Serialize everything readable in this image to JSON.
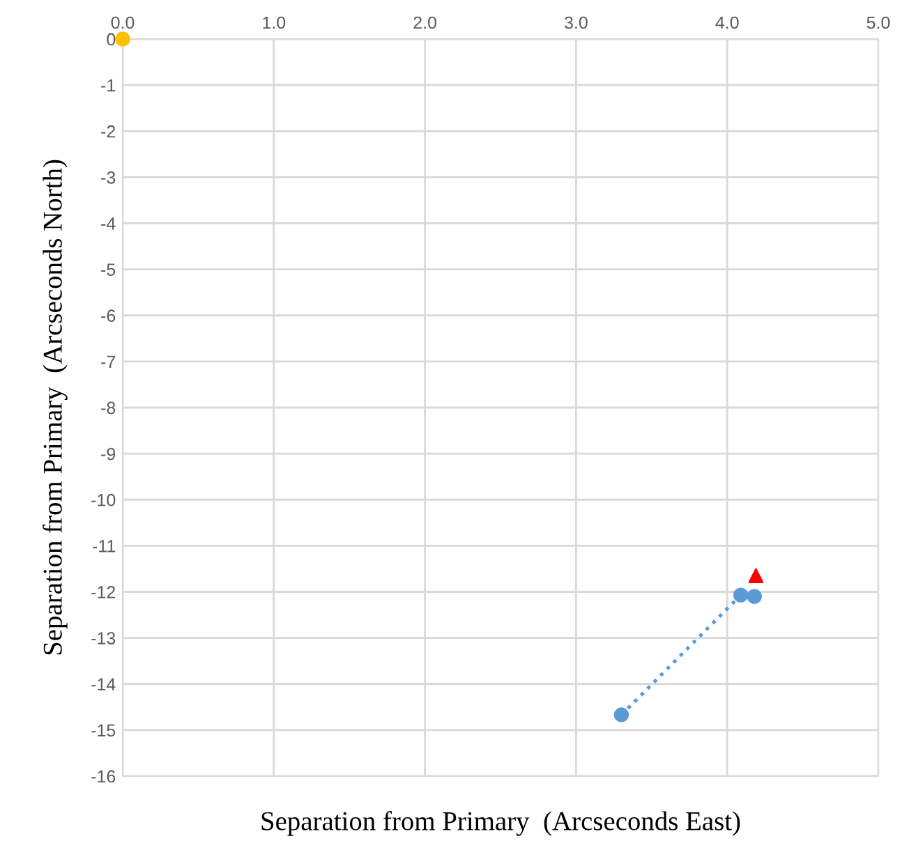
{
  "chart_data": {
    "type": "scatter",
    "xlabel": "Separation from Primary  (Arcseconds East)",
    "ylabel": "Separation from Primary  (Arcseconds North)",
    "xlim": [
      0,
      5
    ],
    "xticks": [
      {
        "value": 0,
        "label": "0.0"
      },
      {
        "value": 1,
        "label": "1.0"
      },
      {
        "value": 2,
        "label": "2.0"
      },
      {
        "value": 3,
        "label": "3.0"
      },
      {
        "value": 4,
        "label": "4.0"
      },
      {
        "value": 5,
        "label": "5.0"
      }
    ],
    "ylim": [
      -16,
      0
    ],
    "yticks": [
      0,
      -1,
      -2,
      -3,
      -4,
      -5,
      -6,
      -7,
      -8,
      -9,
      -10,
      -11,
      -12,
      -13,
      -14,
      -15,
      -16
    ],
    "grid": true,
    "series": [
      {
        "type": "line",
        "color": "#5b9bd5",
        "x": [
          3.3,
          4.09
        ],
        "values": [
          -14.67,
          -12.07
        ],
        "marker": "none",
        "line_style": "dotted"
      },
      {
        "color": "#5b9bd5",
        "x": [
          3.3,
          4.09,
          4.18
        ],
        "values": [
          -14.67,
          -12.07,
          -12.1
        ],
        "marker": "circle"
      },
      {
        "color": "#ff0000",
        "x": [
          4.19
        ],
        "values": [
          -11.65
        ],
        "marker": "triangle"
      },
      {
        "color": "#ffc000",
        "x": [
          0
        ],
        "values": [
          0
        ],
        "marker": "circle"
      }
    ]
  }
}
